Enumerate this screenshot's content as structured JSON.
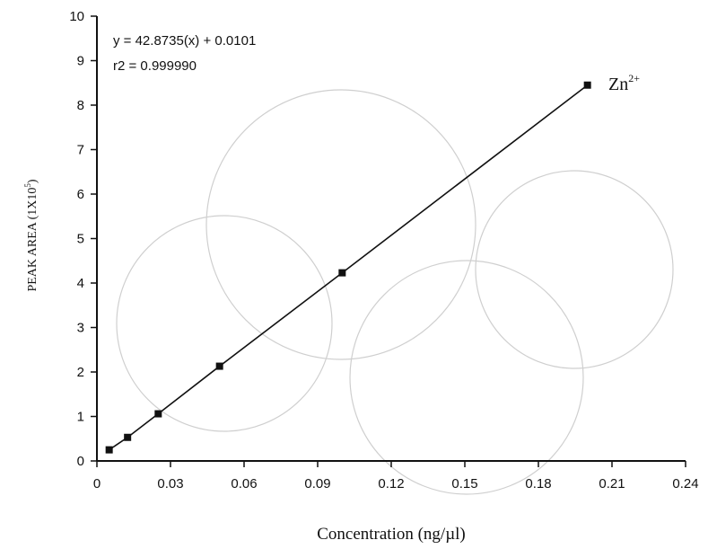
{
  "chart_data": {
    "type": "scatter",
    "xlabel": "Concentration (ng/µl)",
    "ylabel": "PEAK AREA (1X10",
    "ylabel_sup": "5",
    "ylabel_close": ")",
    "xlim": [
      0,
      0.24
    ],
    "ylim": [
      0,
      10
    ],
    "x_ticks": [
      "0",
      "0.03",
      "0.06",
      "0.09",
      "0.12",
      "0.15",
      "0.18",
      "0.21",
      "0.24"
    ],
    "y_ticks": [
      "0",
      "1",
      "2",
      "3",
      "4",
      "5",
      "6",
      "7",
      "8",
      "9",
      "10"
    ],
    "equation": "y  =  42.8735(x)  +  0.0101",
    "r2": "r2  =  0.999990",
    "series": [
      {
        "name": "Zn",
        "name_sup": "2+",
        "x": [
          0.005,
          0.0125,
          0.025,
          0.05,
          0.1,
          0.2
        ],
        "y": [
          0.25,
          0.53,
          1.06,
          2.13,
          4.23,
          8.45
        ],
        "color": "#111111"
      }
    ],
    "grid": false,
    "legend": "label at end of line"
  }
}
